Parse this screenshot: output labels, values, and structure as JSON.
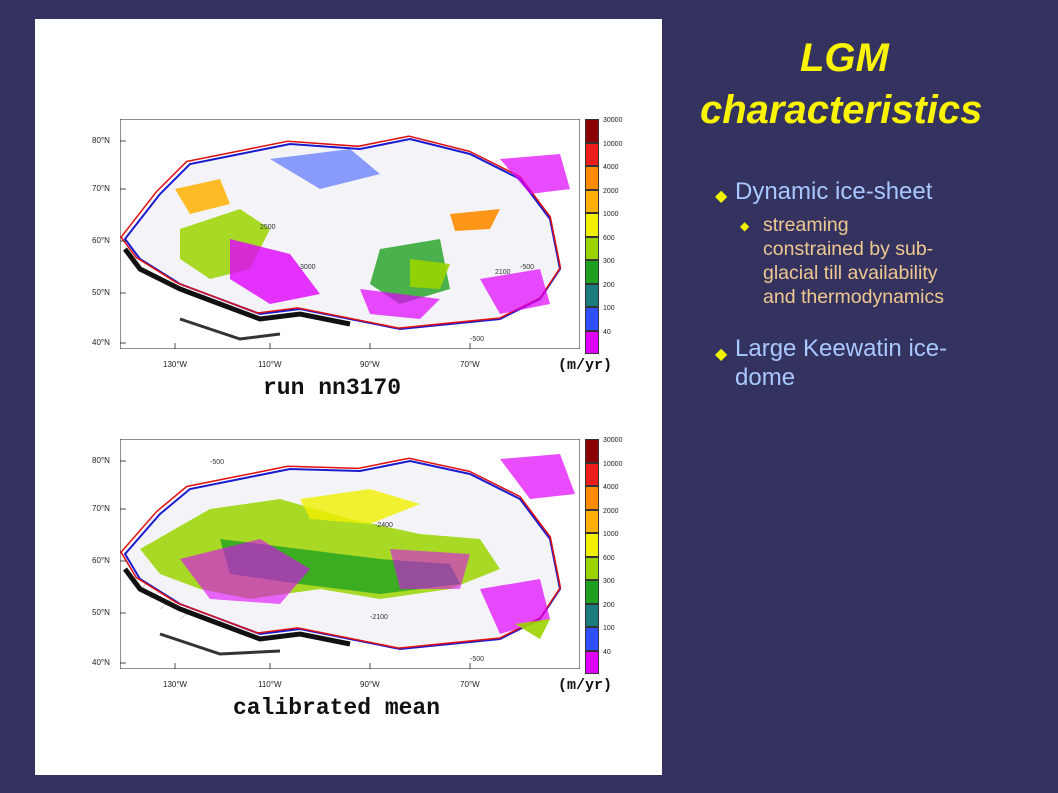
{
  "slide": {
    "title_line1": "LGM",
    "title_line2": "characteristics",
    "bullets": [
      {
        "text": "Dynamic ice-sheet",
        "sub": [
          "streaming",
          "constrained by sub-",
          "glacial till availability",
          "and thermodynamics"
        ]
      },
      {
        "text_line1": "Large Keewatin ice-",
        "text_line2": "dome"
      }
    ]
  },
  "maps": [
    {
      "caption": "run nn3170",
      "units": "(m/yr)",
      "lat_labels": [
        "80°N",
        "70°N",
        "60°N",
        "50°N",
        "40°N"
      ],
      "lon_labels": [
        "130°W",
        "110°W",
        "90°W",
        "70°W"
      ],
      "colorbar": [
        "30000",
        "10000",
        "4000",
        "2000",
        "1000",
        "600",
        "300",
        "200",
        "100",
        "40"
      ],
      "contour_labels": [
        "-500",
        "-500",
        "-500",
        "2100",
        "3000",
        "2500",
        "-500",
        "-500"
      ]
    },
    {
      "caption": "calibrated mean",
      "units": "(m/yr)",
      "lat_labels": [
        "80°N",
        "70°N",
        "60°N",
        "50°N",
        "40°N"
      ],
      "lon_labels": [
        "130°W",
        "110°W",
        "90°W",
        "70°W"
      ],
      "colorbar": [
        "30000",
        "10000",
        "4000",
        "2000",
        "1000",
        "600",
        "300",
        "200",
        "100",
        "40"
      ],
      "contour_labels": [
        "-500",
        "-2400",
        "-500",
        "-2100",
        "-500"
      ]
    }
  ],
  "colors": {
    "background": "#34335f",
    "title": "#fbf400",
    "bullet_text": "#a8c8ff",
    "sub_text": "#f0c890",
    "colorbar": [
      "#8b0000",
      "#ee1c1c",
      "#ff8c00",
      "#ffb000",
      "#f0f000",
      "#9ad400",
      "#20a020",
      "#1a7c7c",
      "#3050ff",
      "#e000ff"
    ]
  }
}
